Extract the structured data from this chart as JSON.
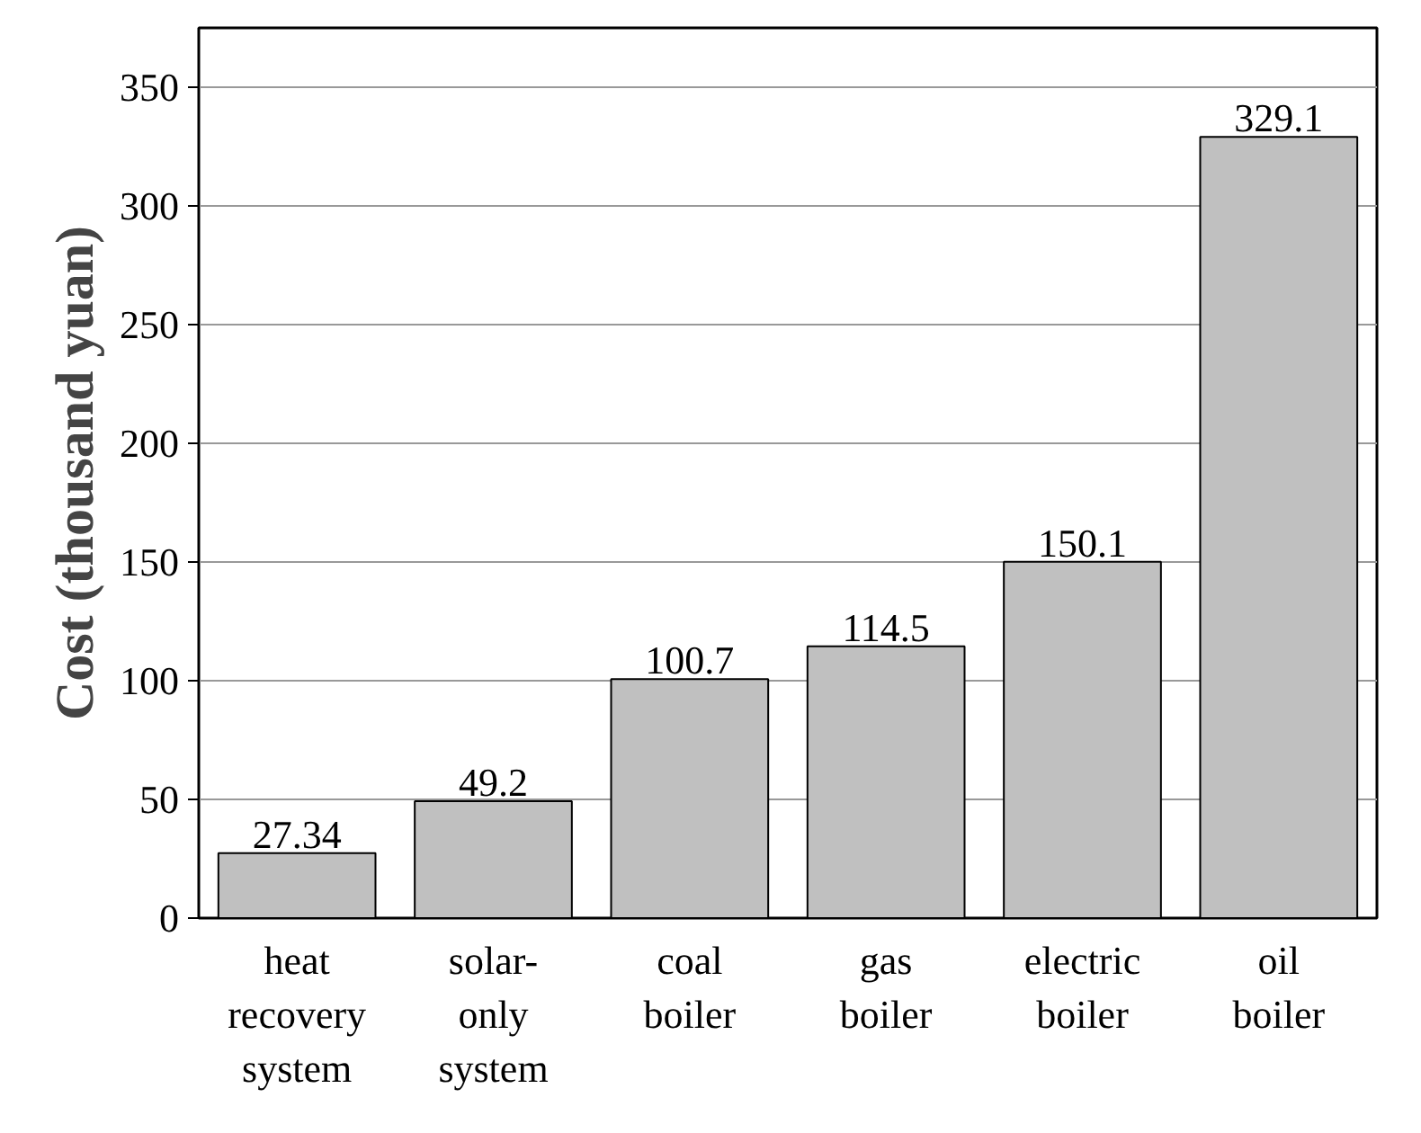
{
  "chart_data": {
    "type": "bar",
    "ylabel": "Cost (thousand yuan)",
    "categories": [
      "heat recovery system",
      "solar-only system",
      "coal boiler",
      "gas boiler",
      "electric boiler",
      "oil boiler"
    ],
    "values": [
      27.34,
      49.2,
      100.7,
      114.5,
      150.1,
      329.1
    ],
    "color": "#c0c0c0",
    "ylim": [
      0,
      375
    ],
    "yticks": [
      0,
      50,
      100,
      150,
      200,
      250,
      300,
      350
    ],
    "grid": "y",
    "data_labels": true
  }
}
